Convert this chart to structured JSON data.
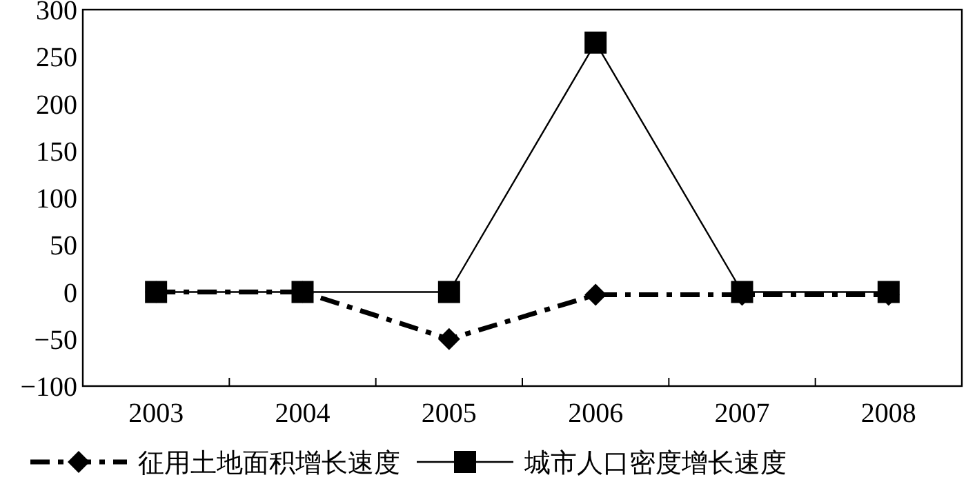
{
  "chart_data": {
    "type": "line",
    "categories": [
      "2003",
      "2004",
      "2005",
      "2006",
      "2007",
      "2008"
    ],
    "series": [
      {
        "name": "征用土地面积增长速度",
        "color": "#000000",
        "values": [
          0,
          0,
          -50,
          -3,
          -3,
          -3
        ],
        "marker": "diamond",
        "line_style": "dashdot"
      },
      {
        "name": "城市人口密度增长速度",
        "color": "#000000",
        "values": [
          0,
          0,
          0,
          265,
          0,
          0
        ],
        "marker": "square",
        "line_style": "solid"
      }
    ],
    "ylim": [
      -100,
      300
    ],
    "yticks": [
      -100,
      -50,
      0,
      50,
      100,
      150,
      200,
      250,
      300
    ],
    "grid": false,
    "legend": "bottom"
  }
}
